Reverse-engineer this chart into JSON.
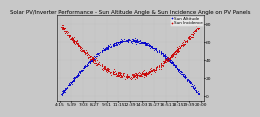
{
  "title": "Solar PV/Inverter Performance - Sun Altitude Angle & Sun Incidence Angle on PV Panels",
  "series": [
    {
      "label": "Sun Altitude",
      "color": "#0000cc",
      "style": "."
    },
    {
      "label": "Sun Incidence",
      "color": "#cc0000",
      "style": "."
    }
  ],
  "ymin": -5,
  "ymax": 90,
  "ytick_right_vals": [
    80,
    60,
    40,
    20,
    0
  ],
  "background_color": "#c8c8c8",
  "plot_bg": "#c8c8c8",
  "title_fontsize": 4.0,
  "tick_fontsize": 3.2,
  "legend_fontsize": 3.0,
  "grid_color": "#aaaaaa",
  "grid_alpha": 0.5,
  "xticklabels": [
    "4:15",
    "5:39",
    "7:03",
    "8:27",
    "9:51",
    "11:15",
    "12:39",
    "14:03",
    "15:27",
    "16:51",
    "18:15",
    "19:39",
    "20:00"
  ],
  "num_days": 30,
  "peak_altitude": 62,
  "min_incidence": 22,
  "max_incidence": 80,
  "sunrise_hour": 4.25,
  "sunset_hour": 20.0
}
